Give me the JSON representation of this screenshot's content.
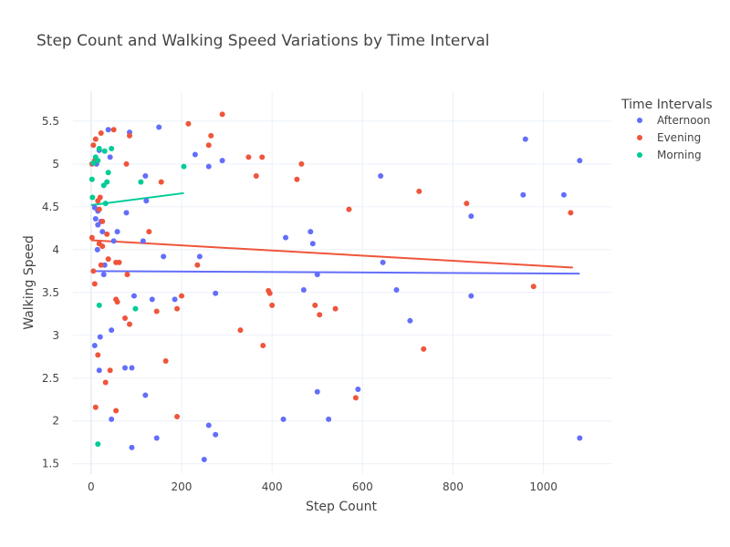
{
  "chart_data": {
    "type": "scatter",
    "title": "Step Count and Walking Speed Variations by Time Interval",
    "xlabel": "Step Count",
    "ylabel": "Walking Speed",
    "xlim": [
      -40,
      1150
    ],
    "ylim": [
      1.38,
      5.85
    ],
    "xticks": [
      0,
      200,
      400,
      600,
      800,
      1000
    ],
    "yticks": [
      1.5,
      2,
      2.5,
      3,
      3.5,
      4,
      4.5,
      5,
      5.5
    ],
    "legend_title": "Time Intervals",
    "legend_position": "top-right",
    "series": [
      {
        "name": "Afternoon",
        "color": "#636efa",
        "trend": [
          [
            0,
            3.75
          ],
          [
            1080,
            3.72
          ]
        ],
        "points": [
          [
            38,
            5.4
          ],
          [
            85,
            5.37
          ],
          [
            150,
            5.43
          ],
          [
            230,
            5.11
          ],
          [
            290,
            5.04
          ],
          [
            260,
            4.97
          ],
          [
            120,
            4.86
          ],
          [
            42,
            5.08
          ],
          [
            12,
            5.0
          ],
          [
            18,
            5.16
          ],
          [
            960,
            5.29
          ],
          [
            1080,
            5.04
          ],
          [
            640,
            4.86
          ],
          [
            955,
            4.64
          ],
          [
            1045,
            4.64
          ],
          [
            122,
            4.57
          ],
          [
            8,
            4.49
          ],
          [
            15,
            4.45
          ],
          [
            78,
            4.43
          ],
          [
            840,
            4.39
          ],
          [
            10,
            4.36
          ],
          [
            22,
            4.33
          ],
          [
            15,
            4.29
          ],
          [
            58,
            4.21
          ],
          [
            25,
            4.21
          ],
          [
            485,
            4.21
          ],
          [
            430,
            4.14
          ],
          [
            115,
            4.1
          ],
          [
            50,
            4.1
          ],
          [
            490,
            4.07
          ],
          [
            14,
            4.0
          ],
          [
            160,
            3.92
          ],
          [
            240,
            3.92
          ],
          [
            645,
            3.85
          ],
          [
            30,
            3.82
          ],
          [
            500,
            3.71
          ],
          [
            28,
            3.71
          ],
          [
            470,
            3.53
          ],
          [
            675,
            3.53
          ],
          [
            275,
            3.49
          ],
          [
            95,
            3.46
          ],
          [
            840,
            3.46
          ],
          [
            135,
            3.42
          ],
          [
            185,
            3.42
          ],
          [
            705,
            3.17
          ],
          [
            45,
            3.06
          ],
          [
            20,
            2.98
          ],
          [
            8,
            2.88
          ],
          [
            75,
            2.62
          ],
          [
            90,
            2.62
          ],
          [
            18,
            2.59
          ],
          [
            590,
            2.37
          ],
          [
            500,
            2.34
          ],
          [
            120,
            2.3
          ],
          [
            45,
            2.02
          ],
          [
            425,
            2.02
          ],
          [
            525,
            2.02
          ],
          [
            260,
            1.95
          ],
          [
            275,
            1.84
          ],
          [
            145,
            1.8
          ],
          [
            1080,
            1.8
          ],
          [
            90,
            1.69
          ],
          [
            250,
            1.55
          ]
        ]
      },
      {
        "name": "Evening",
        "color": "#ef553b",
        "trend": [
          [
            0,
            4.11
          ],
          [
            1065,
            3.79
          ]
        ],
        "points": [
          [
            290,
            5.58
          ],
          [
            215,
            5.47
          ],
          [
            22,
            5.36
          ],
          [
            50,
            5.4
          ],
          [
            85,
            5.33
          ],
          [
            265,
            5.33
          ],
          [
            10,
            5.29
          ],
          [
            5,
            5.22
          ],
          [
            260,
            5.22
          ],
          [
            348,
            5.08
          ],
          [
            378,
            5.08
          ],
          [
            8,
            5.04
          ],
          [
            2,
            5.0
          ],
          [
            78,
            5.0
          ],
          [
            465,
            5.0
          ],
          [
            365,
            4.86
          ],
          [
            455,
            4.82
          ],
          [
            155,
            4.79
          ],
          [
            725,
            4.68
          ],
          [
            20,
            4.61
          ],
          [
            15,
            4.57
          ],
          [
            830,
            4.54
          ],
          [
            18,
            4.47
          ],
          [
            570,
            4.47
          ],
          [
            1060,
            4.43
          ],
          [
            25,
            4.33
          ],
          [
            128,
            4.21
          ],
          [
            35,
            4.18
          ],
          [
            2,
            4.14
          ],
          [
            18,
            4.07
          ],
          [
            25,
            4.04
          ],
          [
            38,
            3.89
          ],
          [
            55,
            3.85
          ],
          [
            62,
            3.85
          ],
          [
            235,
            3.82
          ],
          [
            22,
            3.82
          ],
          [
            5,
            3.75
          ],
          [
            80,
            3.71
          ],
          [
            8,
            3.6
          ],
          [
            978,
            3.57
          ],
          [
            392,
            3.52
          ],
          [
            395,
            3.49
          ],
          [
            200,
            3.46
          ],
          [
            55,
            3.42
          ],
          [
            58,
            3.39
          ],
          [
            400,
            3.35
          ],
          [
            495,
            3.35
          ],
          [
            540,
            3.31
          ],
          [
            190,
            3.31
          ],
          [
            145,
            3.28
          ],
          [
            505,
            3.24
          ],
          [
            75,
            3.2
          ],
          [
            85,
            3.13
          ],
          [
            330,
            3.06
          ],
          [
            380,
            2.88
          ],
          [
            735,
            2.84
          ],
          [
            15,
            2.77
          ],
          [
            165,
            2.7
          ],
          [
            42,
            2.59
          ],
          [
            32,
            2.45
          ],
          [
            585,
            2.27
          ],
          [
            10,
            2.16
          ],
          [
            55,
            2.12
          ],
          [
            190,
            2.05
          ]
        ]
      },
      {
        "name": "Morning",
        "color": "#00cc96",
        "trend": [
          [
            0,
            4.52
          ],
          [
            205,
            4.66
          ]
        ],
        "points": [
          [
            18,
            5.18
          ],
          [
            45,
            5.18
          ],
          [
            30,
            5.15
          ],
          [
            10,
            5.08
          ],
          [
            15,
            5.04
          ],
          [
            5,
            5.01
          ],
          [
            205,
            4.97
          ],
          [
            38,
            4.9
          ],
          [
            2,
            4.82
          ],
          [
            35,
            4.79
          ],
          [
            110,
            4.79
          ],
          [
            28,
            4.75
          ],
          [
            3,
            4.61
          ],
          [
            32,
            4.54
          ],
          [
            18,
            3.35
          ],
          [
            98,
            3.31
          ],
          [
            15,
            1.73
          ]
        ]
      }
    ]
  }
}
